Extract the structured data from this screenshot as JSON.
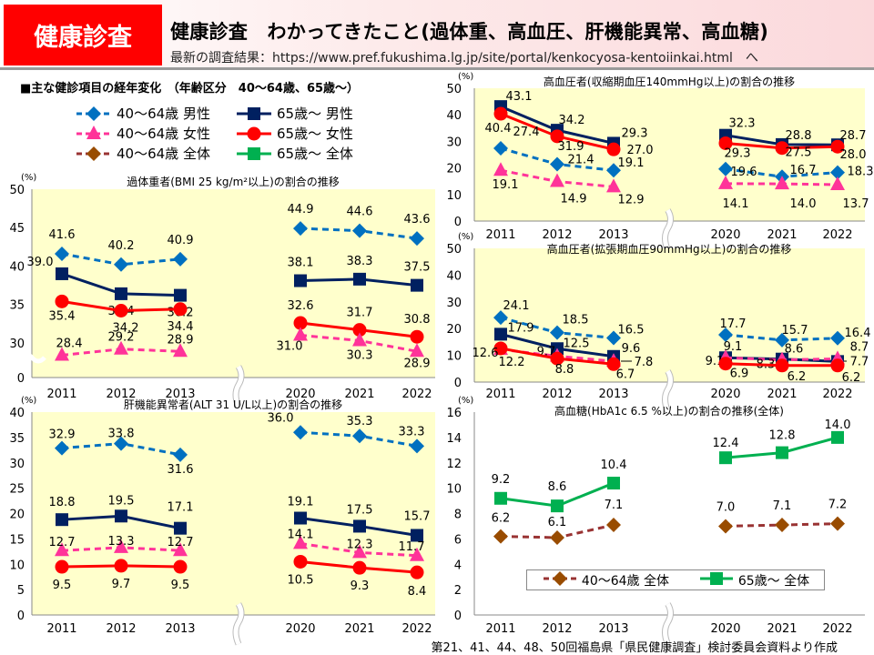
{
  "header": {
    "badge": "健康診査",
    "title": "健康診査　わかってきたこと(過体重、高血圧、肝機能異常、高血糖)",
    "source": "最新の調査結果：https://www.pref.fukushima.lg.jp/site/portal/kenkocyosa-kentoiinkai.html　へ"
  },
  "section_title": "■主な健診項目の経年変化　（年齢区分　40～64歳、65歳～）",
  "legend": [
    {
      "label": "40～64歳  男性",
      "color": "#0070C0",
      "marker": "diamond",
      "dash": true
    },
    {
      "label": "65歳～  男性",
      "color": "#002060",
      "marker": "square",
      "dash": false
    },
    {
      "label": "40～64歳  女性",
      "color": "#FF3399",
      "marker": "triangle",
      "dash": true
    },
    {
      "label": "65歳～  女性",
      "color": "#FF0000",
      "marker": "circle",
      "dash": false
    },
    {
      "label": "40～64歳  全体",
      "color": "#993333",
      "markerColor": "#994C00",
      "marker": "diamond",
      "dash": true
    },
    {
      "label": "65歳～  全体",
      "color": "#00B050",
      "marker": "square",
      "dash": false
    }
  ],
  "footer": "第21、41、44、48、50回福島県「県民健康調査」検討委員会資料より作成",
  "chart_data": [
    {
      "type": "line",
      "title": "過体重者(BMI 25 kg/m²以上)の割合の推移",
      "unit": "(%)",
      "categories": [
        "2011",
        "2012",
        "2013",
        "2020",
        "2021",
        "2022"
      ],
      "axis_break": "between 2013 and 2020; y axis broken between 0 and 30",
      "yticks": [
        "0",
        "30",
        "35",
        "40",
        "45",
        "50"
      ],
      "ylim": [
        0,
        50
      ],
      "background": "#FFFFCC",
      "series": [
        {
          "name": "40～64歳 男性",
          "color": "#0070C0",
          "marker": "diamond",
          "dash": true,
          "values": [
            41.6,
            40.2,
            40.9,
            44.9,
            44.6,
            43.6
          ]
        },
        {
          "name": "65歳～ 男性",
          "color": "#002060",
          "marker": "square",
          "dash": false,
          "values": [
            39.0,
            36.4,
            36.2,
            38.1,
            38.3,
            37.5
          ]
        },
        {
          "name": "65歳～ 女性",
          "color": "#FF0000",
          "marker": "circle",
          "dash": false,
          "values": [
            35.4,
            34.2,
            34.4,
            32.6,
            31.7,
            30.8
          ]
        },
        {
          "name": "40～64歳 女性",
          "color": "#FF3399",
          "marker": "triangle",
          "dash": true,
          "values": [
            28.4,
            29.2,
            28.9,
            31.0,
            30.3,
            28.9
          ]
        }
      ]
    },
    {
      "type": "line",
      "title": "高血圧者(収縮期血圧140mmHg以上)の割合の推移",
      "unit": "(%)",
      "categories": [
        "2011",
        "2012",
        "2013",
        "2020",
        "2021",
        "2022"
      ],
      "yticks": [
        "0",
        "10",
        "20",
        "30",
        "40",
        "50"
      ],
      "ylim": [
        0,
        50
      ],
      "background": "#FFFFCC",
      "series": [
        {
          "name": "65歳～ 男性",
          "color": "#002060",
          "marker": "square",
          "dash": false,
          "values": [
            43.1,
            34.2,
            29.3,
            32.3,
            28.8,
            28.7
          ]
        },
        {
          "name": "65歳～ 女性",
          "color": "#FF0000",
          "marker": "circle",
          "dash": false,
          "values": [
            40.4,
            31.9,
            27.0,
            29.3,
            27.5,
            28.0
          ]
        },
        {
          "name": "40～64歳 男性",
          "color": "#0070C0",
          "marker": "diamond",
          "dash": true,
          "values": [
            27.4,
            21.4,
            19.1,
            19.6,
            16.7,
            18.3
          ]
        },
        {
          "name": "40～64歳 女性",
          "color": "#FF3399",
          "marker": "triangle",
          "dash": true,
          "values": [
            19.1,
            14.9,
            12.9,
            14.1,
            14.0,
            13.7
          ]
        }
      ]
    },
    {
      "type": "line",
      "title": "高血圧者(拡張期血圧90mmHg以上)の割合の推移",
      "unit": "(%)",
      "categories": [
        "2011",
        "2012",
        "2013",
        "2020",
        "2021",
        "2022"
      ],
      "yticks": [
        "0",
        "10",
        "20",
        "30",
        "40",
        "50"
      ],
      "ylim": [
        0,
        50
      ],
      "background": "#FFFFCC",
      "series": [
        {
          "name": "40～64歳 男性",
          "color": "#0070C0",
          "marker": "diamond",
          "dash": true,
          "values": [
            24.1,
            18.5,
            16.5,
            17.7,
            15.7,
            16.4
          ]
        },
        {
          "name": "65歳～ 男性",
          "color": "#002060",
          "marker": "square",
          "dash": false,
          "values": [
            17.9,
            12.5,
            9.6,
            9.1,
            8.6,
            7.7
          ]
        },
        {
          "name": "40～64歳 女性",
          "color": "#FF3399",
          "marker": "triangle",
          "dash": true,
          "values": [
            12.2,
            9.7,
            7.8,
            9.1,
            8.3,
            8.7
          ]
        },
        {
          "name": "65歳～ 女性",
          "color": "#FF0000",
          "marker": "circle",
          "dash": false,
          "values": [
            12.6,
            8.8,
            6.7,
            6.9,
            6.2,
            6.2
          ]
        }
      ]
    },
    {
      "type": "line",
      "title": "肝機能異常者(ALT 31 U/L以上)の割合の推移",
      "unit": "(%)",
      "categories": [
        "2011",
        "2012",
        "2013",
        "2020",
        "2021",
        "2022"
      ],
      "yticks": [
        "0",
        "5",
        "10",
        "15",
        "20",
        "25",
        "30",
        "35",
        "40"
      ],
      "ylim": [
        0,
        40
      ],
      "background": "#FFFFCC",
      "series": [
        {
          "name": "40～64歳 男性",
          "color": "#0070C0",
          "marker": "diamond",
          "dash": true,
          "values": [
            32.9,
            33.8,
            31.6,
            36.0,
            35.3,
            33.3
          ]
        },
        {
          "name": "65歳～ 男性",
          "color": "#002060",
          "marker": "square",
          "dash": false,
          "values": [
            18.8,
            19.5,
            17.1,
            19.1,
            17.5,
            15.7
          ]
        },
        {
          "name": "40～64歳 女性",
          "color": "#FF3399",
          "marker": "triangle",
          "dash": true,
          "values": [
            12.7,
            13.3,
            12.7,
            14.1,
            12.3,
            11.7
          ]
        },
        {
          "name": "65歳～ 女性",
          "color": "#FF0000",
          "marker": "circle",
          "dash": false,
          "values": [
            9.5,
            9.7,
            9.5,
            10.5,
            9.3,
            8.4
          ]
        }
      ]
    },
    {
      "type": "line",
      "title": "高血糖(HbA1c 6.5 %以上)の割合の推移(全体)",
      "unit": "(%)",
      "categories": [
        "2011",
        "2012",
        "2013",
        "2020",
        "2021",
        "2022"
      ],
      "yticks": [
        "0",
        "2",
        "4",
        "6",
        "8",
        "10",
        "12",
        "14",
        "16"
      ],
      "ylim": [
        0,
        16
      ],
      "background": "#FFFFFF",
      "legend_position": "bottom",
      "series": [
        {
          "name": "65歳～  全体",
          "color": "#00B050",
          "marker": "square",
          "dash": false,
          "values": [
            9.2,
            8.6,
            10.4,
            12.4,
            12.8,
            14.0
          ]
        },
        {
          "name": "40～64歳  全体",
          "color": "#993333",
          "markerColor": "#994C00",
          "marker": "diamond",
          "dash": true,
          "values": [
            6.2,
            6.1,
            7.1,
            7.0,
            7.1,
            7.2
          ]
        }
      ]
    }
  ]
}
